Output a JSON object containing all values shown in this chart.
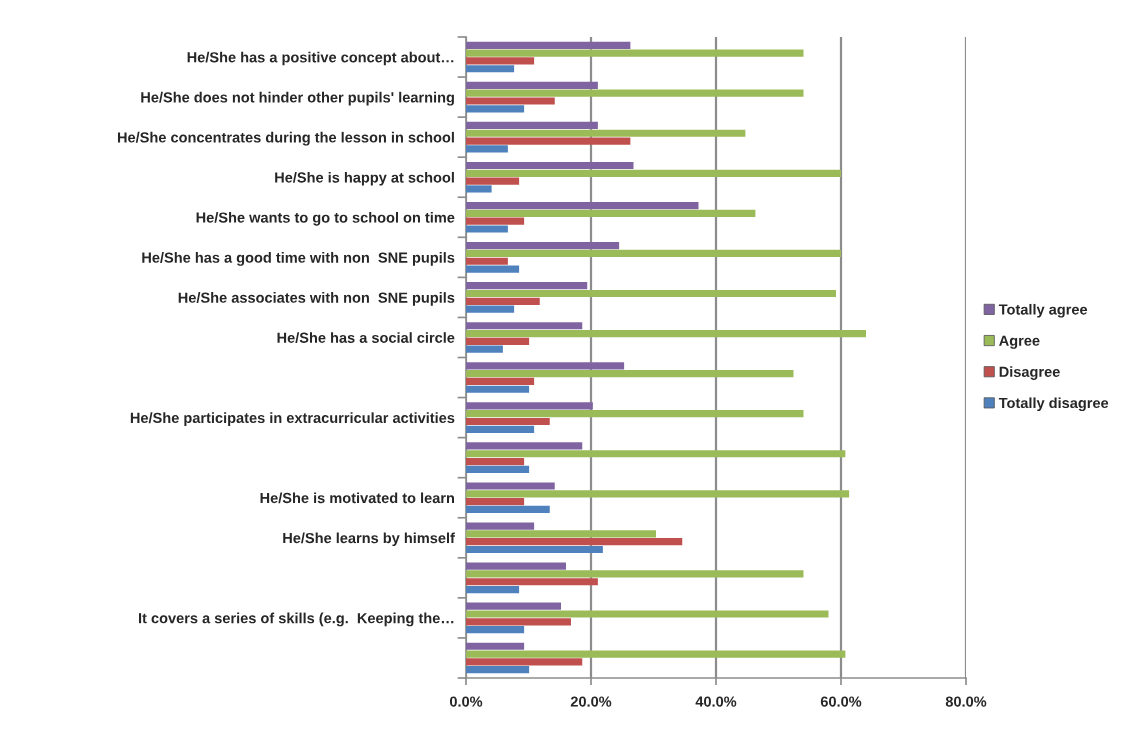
{
  "chart_data": {
    "type": "bar",
    "orientation": "horizontal",
    "categories": [
      "He/She has a positive concept about…",
      "He/She does not hinder other pupils' learning",
      "He/She concentrates during the lesson in school",
      "He/She is happy at school",
      "He/She wants to go to school on time",
      "He/She has a good time with non  SNE pupils",
      "He/She associates with non  SNE pupils",
      "He/She has a social circle",
      null,
      "He/She participates in extracurricular activities",
      null,
      "He/She is motivated to learn",
      "He/She learns by himself",
      null,
      "It covers a series of skills (e.g.  Keeping the…",
      null
    ],
    "series": [
      {
        "name": "Totally agree",
        "color": "#8064a2",
        "values": [
          26.3,
          21.1,
          21.1,
          26.8,
          37.2,
          24.5,
          19.4,
          18.6,
          25.3,
          20.3,
          18.6,
          14.2,
          10.9,
          16.0,
          15.2,
          9.3
        ]
      },
      {
        "name": "Agree",
        "color": "#9bbb59",
        "values": [
          54.0,
          54.0,
          44.7,
          60.0,
          46.3,
          60.0,
          59.2,
          64.0,
          52.4,
          54.0,
          60.7,
          61.3,
          30.4,
          54.0,
          58.0,
          60.7
        ]
      },
      {
        "name": "Disagree",
        "color": "#c0504d",
        "values": [
          10.9,
          14.2,
          26.3,
          8.5,
          9.3,
          6.7,
          11.8,
          10.1,
          10.9,
          13.4,
          9.3,
          9.3,
          34.6,
          21.1,
          16.8,
          18.6
        ]
      },
      {
        "name": "Totally disagree",
        "color": "#4f81bd",
        "values": [
          7.7,
          9.3,
          6.7,
          4.1,
          6.7,
          8.5,
          7.7,
          5.9,
          10.1,
          10.9,
          10.1,
          13.4,
          21.9,
          8.5,
          9.3,
          10.1
        ]
      }
    ],
    "xlim": [
      0,
      80
    ],
    "xticks": [
      {
        "value": 0,
        "label": "0.0%"
      },
      {
        "value": 20,
        "label": "20.0%"
      },
      {
        "value": 40,
        "label": "40.0%"
      },
      {
        "value": 60,
        "label": "60.0%"
      },
      {
        "value": 80,
        "label": "80.0%"
      }
    ],
    "grid": "x",
    "legend": "right"
  }
}
